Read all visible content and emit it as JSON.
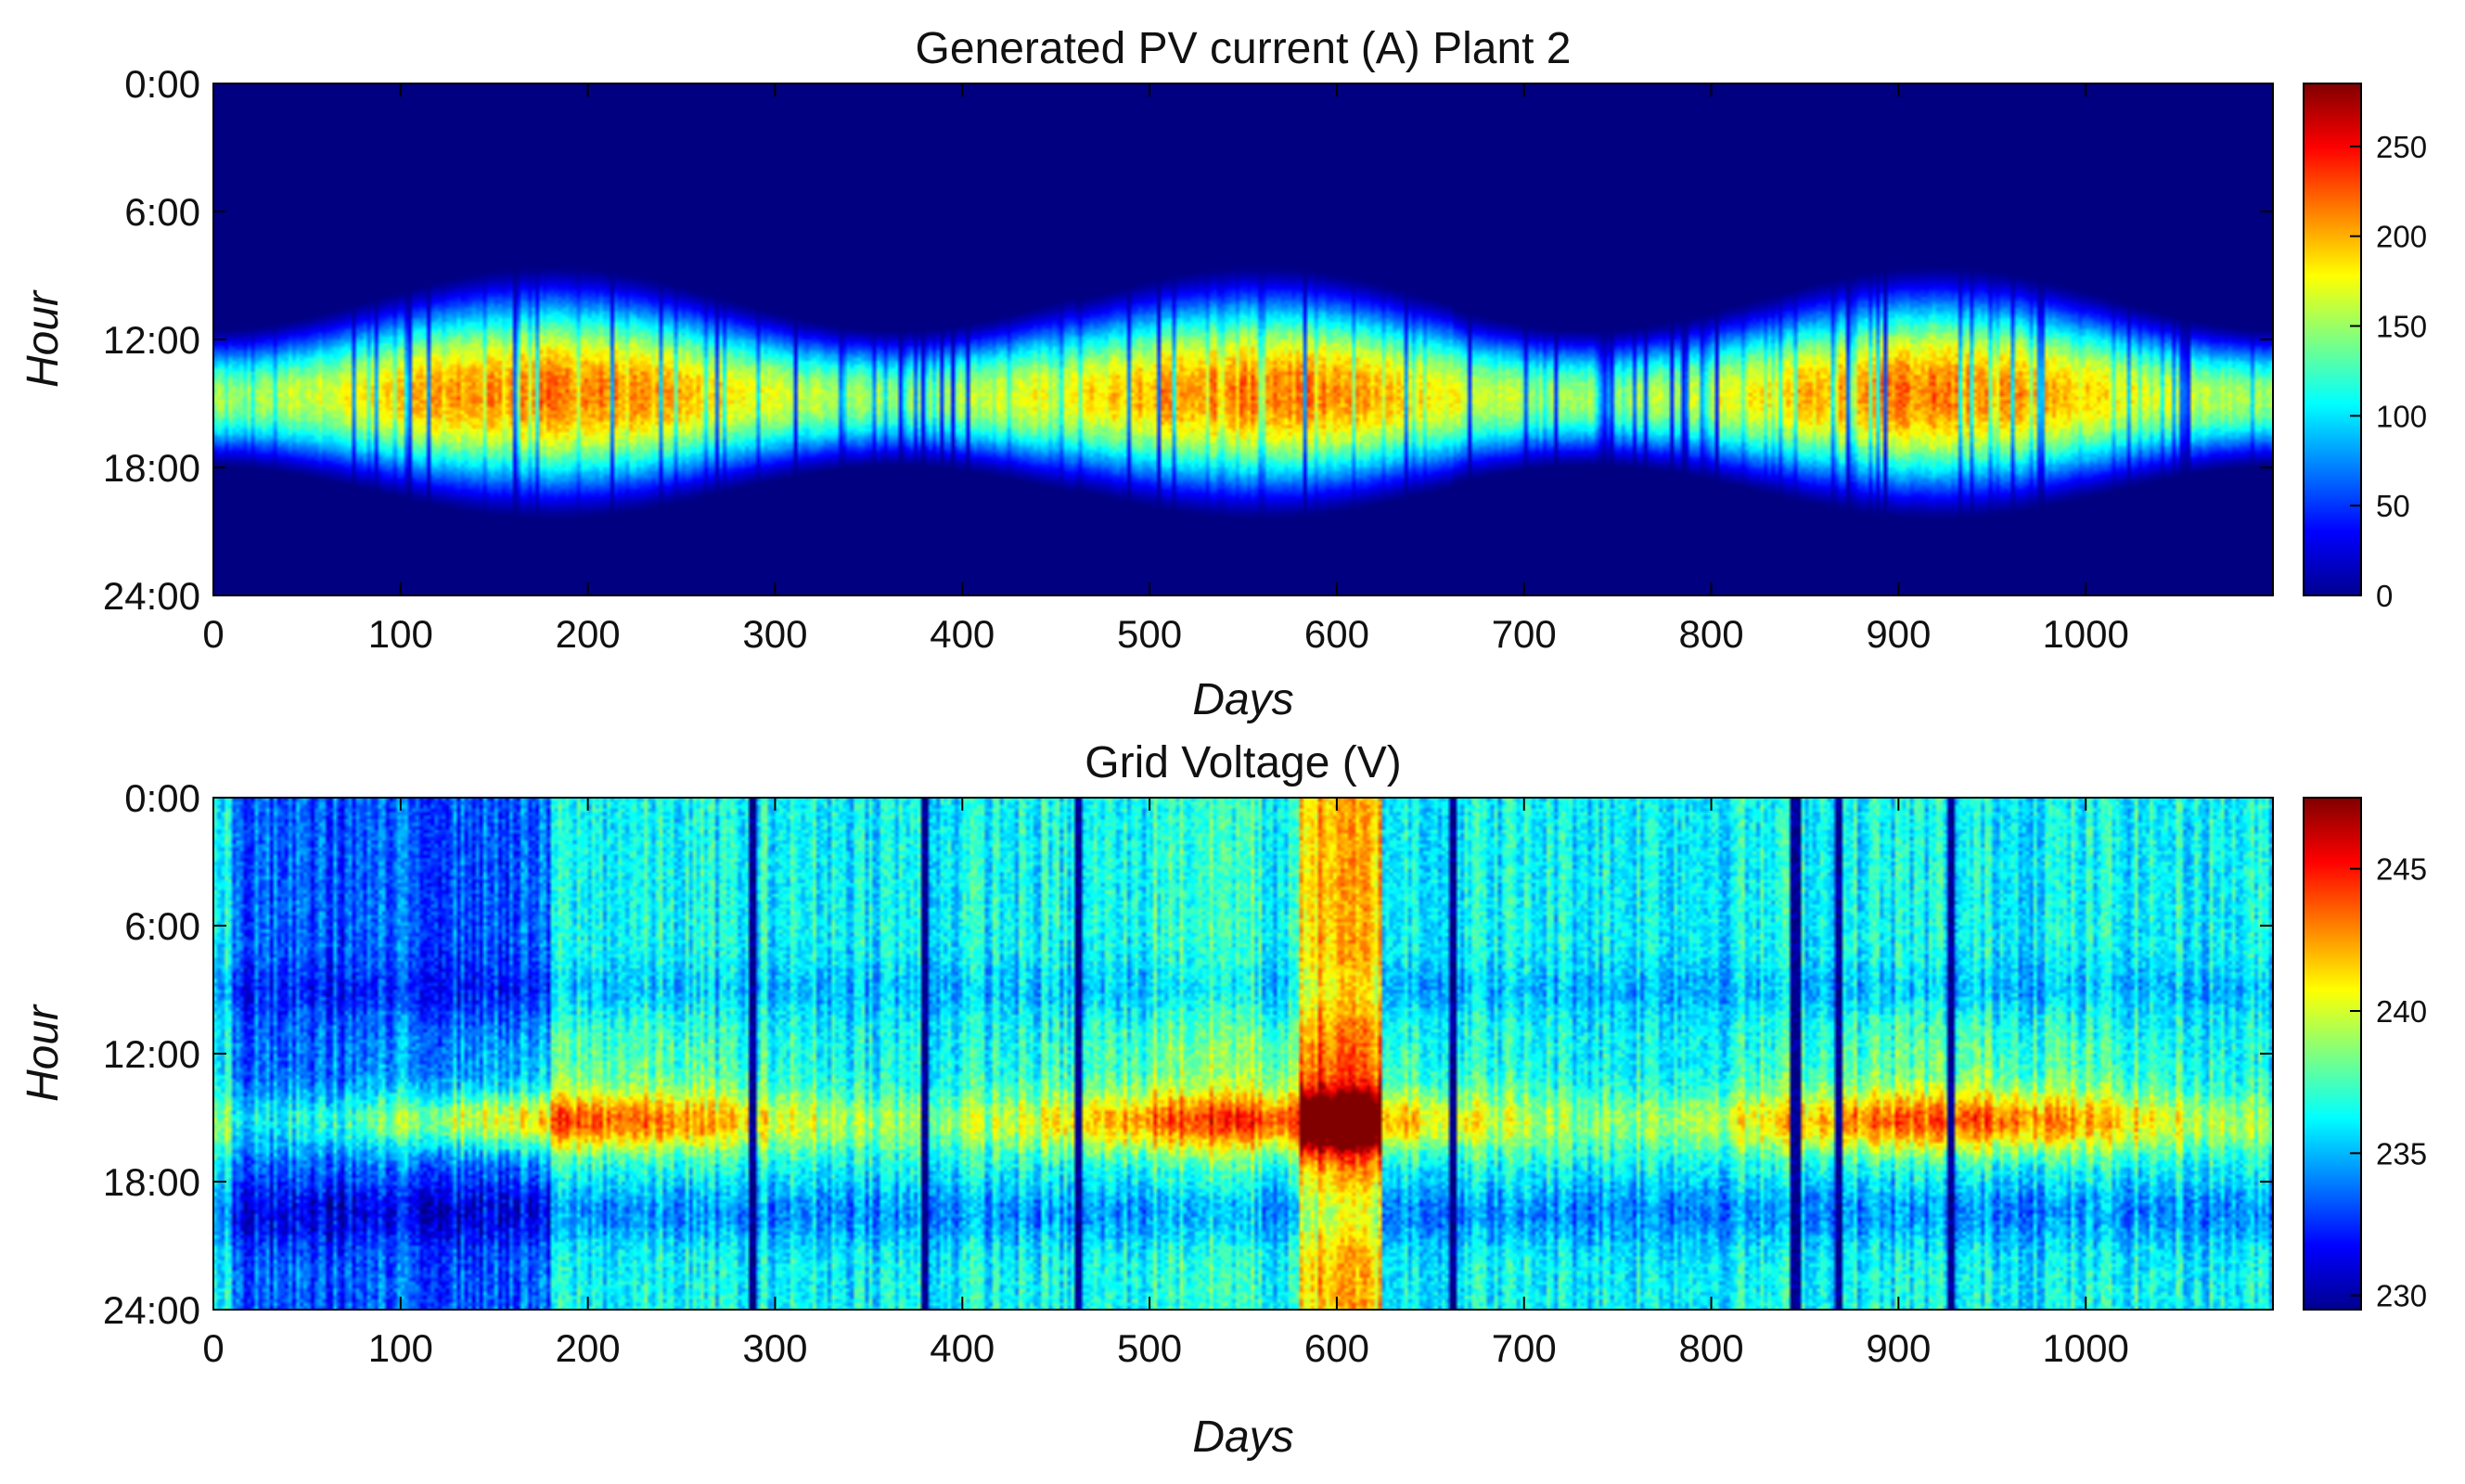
{
  "chart_data": [
    {
      "type": "heatmap",
      "title": "Generated PV current (A) Plant 2",
      "xlabel": "Days",
      "ylabel": "Hour",
      "xlim": [
        0,
        1100
      ],
      "xticks": [
        0,
        100,
        200,
        300,
        400,
        500,
        600,
        700,
        800,
        900,
        1000
      ],
      "yticks": [
        "0:00",
        "6:00",
        "12:00",
        "18:00",
        "24:00"
      ],
      "colorbar": {
        "range": [
          0,
          285
        ],
        "ticks": [
          0,
          50,
          100,
          150,
          200,
          250
        ]
      },
      "colormap": "jet",
      "pattern": "seasonal_daylight",
      "summary": {
        "night_value": 0,
        "peak_value": 230,
        "peak_hour": 14,
        "summer_days": [
          180,
          550,
          920
        ],
        "winter_days": [
          360,
          730
        ],
        "longest_day_hours": [
          8.5,
          20.5
        ],
        "shortest_day_hours": [
          11.5,
          18.0
        ],
        "data_offset_days": [
          460,
          663
        ]
      }
    },
    {
      "type": "heatmap",
      "title": "Grid Voltage (V)",
      "xlabel": "Days",
      "ylabel": "Hour",
      "xlim": [
        0,
        1100
      ],
      "xticks": [
        0,
        100,
        200,
        300,
        400,
        500,
        600,
        700,
        800,
        900,
        1000
      ],
      "yticks": [
        "0:00",
        "6:00",
        "12:00",
        "18:00",
        "24:00"
      ],
      "colorbar": {
        "range": [
          229.5,
          247.5
        ],
        "ticks": [
          230,
          235,
          240,
          245
        ]
      },
      "colormap": "jet",
      "pattern": "grid_voltage",
      "summary": {
        "baseline_value": 235.5,
        "midday_peak_hours": [
          14.5,
          16.5
        ],
        "high_voltage_days": [
          580,
          625
        ],
        "peak_value": 246.5,
        "dark_streak_days": [
          288,
          380,
          462,
          662,
          845,
          868,
          928
        ],
        "low_voltage_days": [
          10,
          180
        ]
      }
    }
  ]
}
